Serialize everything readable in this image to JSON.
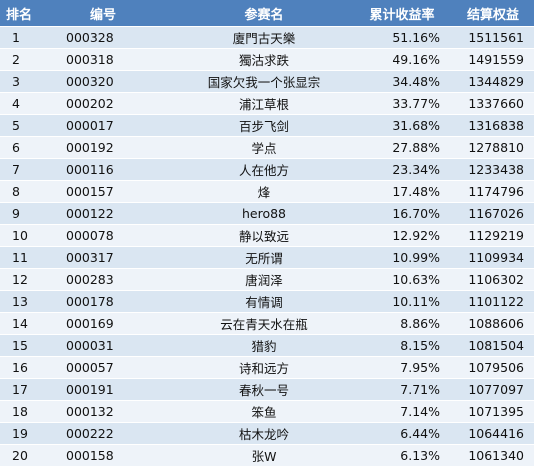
{
  "header": {
    "rank": "排名",
    "code": "编号",
    "name": "参赛名",
    "rate": "累计收益率",
    "equity": "结算权益"
  },
  "rows": [
    {
      "rank": "1",
      "code": "000328",
      "name": "廈門古天樂",
      "rate": "51.16%",
      "equity": "1511561"
    },
    {
      "rank": "2",
      "code": "000318",
      "name": "獨沽求跌",
      "rate": "49.16%",
      "equity": "1491559"
    },
    {
      "rank": "3",
      "code": "000320",
      "name": "国家欠我一个张显宗",
      "rate": "34.48%",
      "equity": "1344829"
    },
    {
      "rank": "4",
      "code": "000202",
      "name": "浦江草根",
      "rate": "33.77%",
      "equity": "1337660"
    },
    {
      "rank": "5",
      "code": "000017",
      "name": "百步飞剑",
      "rate": "31.68%",
      "equity": "1316838"
    },
    {
      "rank": "6",
      "code": "000192",
      "name": "学点",
      "rate": "27.88%",
      "equity": "1278810"
    },
    {
      "rank": "7",
      "code": "000116",
      "name": "人在他方",
      "rate": "23.34%",
      "equity": "1233438"
    },
    {
      "rank": "8",
      "code": "000157",
      "name": "烽",
      "rate": "17.48%",
      "equity": "1174796"
    },
    {
      "rank": "9",
      "code": "000122",
      "name": "hero88",
      "rate": "16.70%",
      "equity": "1167026"
    },
    {
      "rank": "10",
      "code": "000078",
      "name": "静以致远",
      "rate": "12.92%",
      "equity": "1129219"
    },
    {
      "rank": "11",
      "code": "000317",
      "name": "无所谓",
      "rate": "10.99%",
      "equity": "1109934"
    },
    {
      "rank": "12",
      "code": "000283",
      "name": "唐润泽",
      "rate": "10.63%",
      "equity": "1106302"
    },
    {
      "rank": "13",
      "code": "000178",
      "name": "有情调",
      "rate": "10.11%",
      "equity": "1101122"
    },
    {
      "rank": "14",
      "code": "000169",
      "name": "云在青天水在瓶",
      "rate": "8.86%",
      "equity": "1088606"
    },
    {
      "rank": "15",
      "code": "000031",
      "name": "猎豹",
      "rate": "8.15%",
      "equity": "1081504"
    },
    {
      "rank": "16",
      "code": "000057",
      "name": "诗和远方",
      "rate": "7.95%",
      "equity": "1079506"
    },
    {
      "rank": "17",
      "code": "000191",
      "name": "春秋一号",
      "rate": "7.71%",
      "equity": "1077097"
    },
    {
      "rank": "18",
      "code": "000132",
      "name": "笨鱼",
      "rate": "7.14%",
      "equity": "1071395"
    },
    {
      "rank": "19",
      "code": "000222",
      "name": "枯木龙吟",
      "rate": "6.44%",
      "equity": "1064416"
    },
    {
      "rank": "20",
      "code": "000158",
      "name": "张W",
      "rate": "6.13%",
      "equity": "1061340"
    }
  ]
}
